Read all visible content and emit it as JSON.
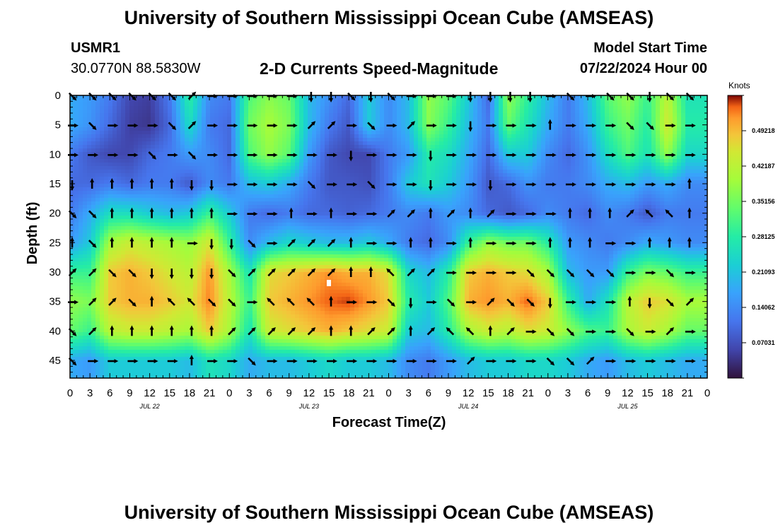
{
  "header": {
    "title": "University of Southern Mississippi Ocean Cube (AMSEAS)",
    "station": "USMR1",
    "coords": "30.0770N  88.5830W",
    "subtitle": "2-D Currents Speed-Magnitude",
    "model_start_label": "Model Start Time",
    "model_start_value": "07/22/2024 Hour 00"
  },
  "footer": {
    "title": "University of Southern Mississippi Ocean Cube (AMSEAS)"
  },
  "chart_data": {
    "type": "heatmap",
    "title": "2-D Currents Speed-Magnitude",
    "xlabel": "Forecast Time(Z)",
    "ylabel": "Depth (ft)",
    "colorbar_label": "Knots",
    "colorbar_ticks": [
      "0.49218",
      "0.42187",
      "0.35156",
      "0.28125",
      "0.21093",
      "0.14062",
      "0.07031"
    ],
    "colorbar_tick_values": [
      0.49218,
      0.42187,
      0.35156,
      0.28125,
      0.21093,
      0.14062,
      0.07031
    ],
    "colorbar_range": [
      0.0,
      0.5625
    ],
    "x_tick_labels": [
      "0",
      "3",
      "6",
      "9",
      "12",
      "15",
      "18",
      "21",
      "0",
      "3",
      "6",
      "9",
      "12",
      "15",
      "18",
      "21",
      "0",
      "3",
      "6",
      "9",
      "12",
      "15",
      "18",
      "21",
      "0",
      "3",
      "6",
      "9",
      "12",
      "15",
      "18",
      "21",
      "0"
    ],
    "date_labels": [
      "JUL 22",
      "JUL 23",
      "JUL 24",
      "JUL 25"
    ],
    "x_range_hours": [
      0,
      96
    ],
    "y_ticks": [
      0,
      5,
      10,
      15,
      20,
      25,
      30,
      35,
      40,
      45
    ],
    "y_range": [
      0,
      48
    ],
    "depths": [
      0,
      5,
      10,
      15,
      20,
      25,
      30,
      35,
      40,
      45
    ],
    "times": [
      0,
      3,
      6,
      9,
      12,
      15,
      18,
      21,
      24,
      27,
      30,
      33,
      36,
      39,
      42,
      45,
      48,
      51,
      54,
      57,
      60,
      63,
      66,
      69,
      72,
      75,
      78,
      81,
      84,
      87,
      90,
      93
    ],
    "speed": [
      [
        0.18,
        0.16,
        0.12,
        0.06,
        0.05,
        0.12,
        0.29,
        0.14,
        0.12,
        0.32,
        0.37,
        0.34,
        0.2,
        0.15,
        0.1,
        0.22,
        0.14,
        0.2,
        0.38,
        0.33,
        0.22,
        0.1,
        0.38,
        0.29,
        0.2,
        0.12,
        0.2,
        0.33,
        0.38,
        0.3,
        0.42,
        0.26
      ],
      [
        0.18,
        0.15,
        0.1,
        0.05,
        0.04,
        0.1,
        0.25,
        0.12,
        0.1,
        0.35,
        0.4,
        0.36,
        0.2,
        0.12,
        0.08,
        0.22,
        0.14,
        0.2,
        0.37,
        0.3,
        0.2,
        0.12,
        0.34,
        0.26,
        0.18,
        0.12,
        0.18,
        0.3,
        0.35,
        0.28,
        0.45,
        0.28
      ],
      [
        0.12,
        0.08,
        0.06,
        0.06,
        0.1,
        0.12,
        0.16,
        0.14,
        0.1,
        0.32,
        0.38,
        0.33,
        0.16,
        0.08,
        0.06,
        0.06,
        0.12,
        0.16,
        0.28,
        0.25,
        0.18,
        0.1,
        0.22,
        0.22,
        0.14,
        0.1,
        0.15,
        0.25,
        0.32,
        0.26,
        0.38,
        0.24
      ],
      [
        0.1,
        0.1,
        0.12,
        0.1,
        0.12,
        0.12,
        0.08,
        0.14,
        0.12,
        0.2,
        0.22,
        0.18,
        0.12,
        0.08,
        0.08,
        0.07,
        0.12,
        0.22,
        0.26,
        0.22,
        0.16,
        0.08,
        0.1,
        0.15,
        0.12,
        0.12,
        0.14,
        0.18,
        0.2,
        0.16,
        0.18,
        0.14
      ],
      [
        0.12,
        0.18,
        0.25,
        0.25,
        0.22,
        0.2,
        0.22,
        0.3,
        0.22,
        0.12,
        0.1,
        0.12,
        0.1,
        0.1,
        0.09,
        0.1,
        0.12,
        0.14,
        0.12,
        0.16,
        0.14,
        0.1,
        0.08,
        0.1,
        0.14,
        0.12,
        0.1,
        0.14,
        0.12,
        0.08,
        0.12,
        0.12
      ],
      [
        0.16,
        0.22,
        0.4,
        0.44,
        0.42,
        0.4,
        0.38,
        0.45,
        0.3,
        0.14,
        0.2,
        0.24,
        0.22,
        0.2,
        0.2,
        0.22,
        0.18,
        0.12,
        0.1,
        0.14,
        0.3,
        0.38,
        0.35,
        0.35,
        0.28,
        0.16,
        0.14,
        0.12,
        0.14,
        0.18,
        0.16,
        0.14
      ],
      [
        0.3,
        0.3,
        0.48,
        0.5,
        0.48,
        0.45,
        0.42,
        0.52,
        0.4,
        0.26,
        0.46,
        0.48,
        0.5,
        0.52,
        0.5,
        0.5,
        0.46,
        0.24,
        0.2,
        0.28,
        0.48,
        0.5,
        0.48,
        0.46,
        0.4,
        0.2,
        0.16,
        0.16,
        0.3,
        0.36,
        0.34,
        0.3
      ],
      [
        0.38,
        0.36,
        0.48,
        0.5,
        0.5,
        0.48,
        0.45,
        0.53,
        0.42,
        0.3,
        0.48,
        0.5,
        0.52,
        0.54,
        0.55,
        0.52,
        0.48,
        0.28,
        0.22,
        0.32,
        0.5,
        0.52,
        0.5,
        0.54,
        0.48,
        0.3,
        0.18,
        0.26,
        0.42,
        0.48,
        0.46,
        0.4
      ],
      [
        0.34,
        0.3,
        0.42,
        0.44,
        0.44,
        0.42,
        0.4,
        0.48,
        0.4,
        0.26,
        0.44,
        0.46,
        0.48,
        0.5,
        0.48,
        0.46,
        0.44,
        0.22,
        0.2,
        0.28,
        0.4,
        0.44,
        0.42,
        0.46,
        0.44,
        0.38,
        0.32,
        0.3,
        0.4,
        0.44,
        0.4,
        0.34
      ],
      [
        0.18,
        0.16,
        0.22,
        0.22,
        0.22,
        0.22,
        0.2,
        0.26,
        0.24,
        0.18,
        0.2,
        0.2,
        0.22,
        0.24,
        0.22,
        0.22,
        0.2,
        0.14,
        0.12,
        0.16,
        0.2,
        0.22,
        0.22,
        0.24,
        0.24,
        0.22,
        0.18,
        0.16,
        0.2,
        0.22,
        0.2,
        0.18
      ]
    ],
    "direction_deg": [
      [
        135,
        135,
        135,
        135,
        135,
        135,
        45,
        90,
        90,
        90,
        90,
        90,
        180,
        180,
        135,
        180,
        135,
        90,
        90,
        90,
        180,
        180,
        180,
        180,
        90,
        135,
        90,
        135,
        135,
        180,
        135,
        135
      ],
      [
        90,
        135,
        90,
        90,
        90,
        135,
        45,
        90,
        90,
        90,
        90,
        90,
        45,
        45,
        90,
        135,
        90,
        45,
        90,
        90,
        180,
        90,
        90,
        90,
        0,
        90,
        90,
        90,
        135,
        135,
        90,
        90
      ],
      [
        90,
        90,
        90,
        90,
        135,
        90,
        135,
        90,
        90,
        90,
        90,
        90,
        90,
        90,
        180,
        90,
        90,
        90,
        180,
        90,
        90,
        90,
        90,
        90,
        90,
        90,
        90,
        90,
        90,
        90,
        90,
        90
      ],
      [
        180,
        0,
        0,
        0,
        0,
        0,
        180,
        180,
        90,
        90,
        90,
        90,
        135,
        90,
        90,
        135,
        90,
        90,
        180,
        90,
        90,
        180,
        90,
        90,
        90,
        90,
        90,
        90,
        90,
        90,
        90,
        0
      ],
      [
        135,
        135,
        0,
        0,
        0,
        0,
        0,
        0,
        90,
        90,
        90,
        0,
        90,
        0,
        90,
        90,
        45,
        45,
        0,
        45,
        0,
        45,
        90,
        90,
        90,
        0,
        0,
        0,
        45,
        315,
        315,
        0
      ],
      [
        0,
        135,
        0,
        0,
        0,
        0,
        90,
        180,
        180,
        135,
        90,
        45,
        45,
        45,
        0,
        90,
        90,
        0,
        0,
        90,
        0,
        90,
        90,
        90,
        0,
        0,
        0,
        90,
        90,
        0,
        0,
        0
      ],
      [
        45,
        45,
        135,
        135,
        180,
        180,
        180,
        180,
        135,
        45,
        45,
        45,
        45,
        45,
        0,
        0,
        315,
        45,
        45,
        90,
        90,
        90,
        90,
        135,
        135,
        135,
        135,
        135,
        90,
        90,
        135,
        90
      ],
      [
        90,
        45,
        45,
        135,
        0,
        315,
        315,
        135,
        135,
        90,
        315,
        315,
        315,
        0,
        90,
        90,
        135,
        180,
        90,
        135,
        90,
        45,
        135,
        135,
        180,
        90,
        90,
        90,
        0,
        180,
        135,
        45
      ],
      [
        135,
        45,
        0,
        0,
        0,
        0,
        0,
        0,
        45,
        45,
        45,
        45,
        45,
        0,
        0,
        45,
        45,
        0,
        45,
        315,
        315,
        0,
        45,
        90,
        135,
        135,
        90,
        90,
        135,
        90,
        45,
        90
      ],
      [
        135,
        90,
        90,
        90,
        90,
        90,
        0,
        90,
        90,
        135,
        90,
        90,
        90,
        90,
        90,
        90,
        90,
        90,
        90,
        90,
        45,
        90,
        90,
        90,
        135,
        135,
        45,
        90,
        90,
        90,
        90,
        90
      ]
    ],
    "direction_note": "arrow direction in degrees clockwise from up (toward)"
  }
}
